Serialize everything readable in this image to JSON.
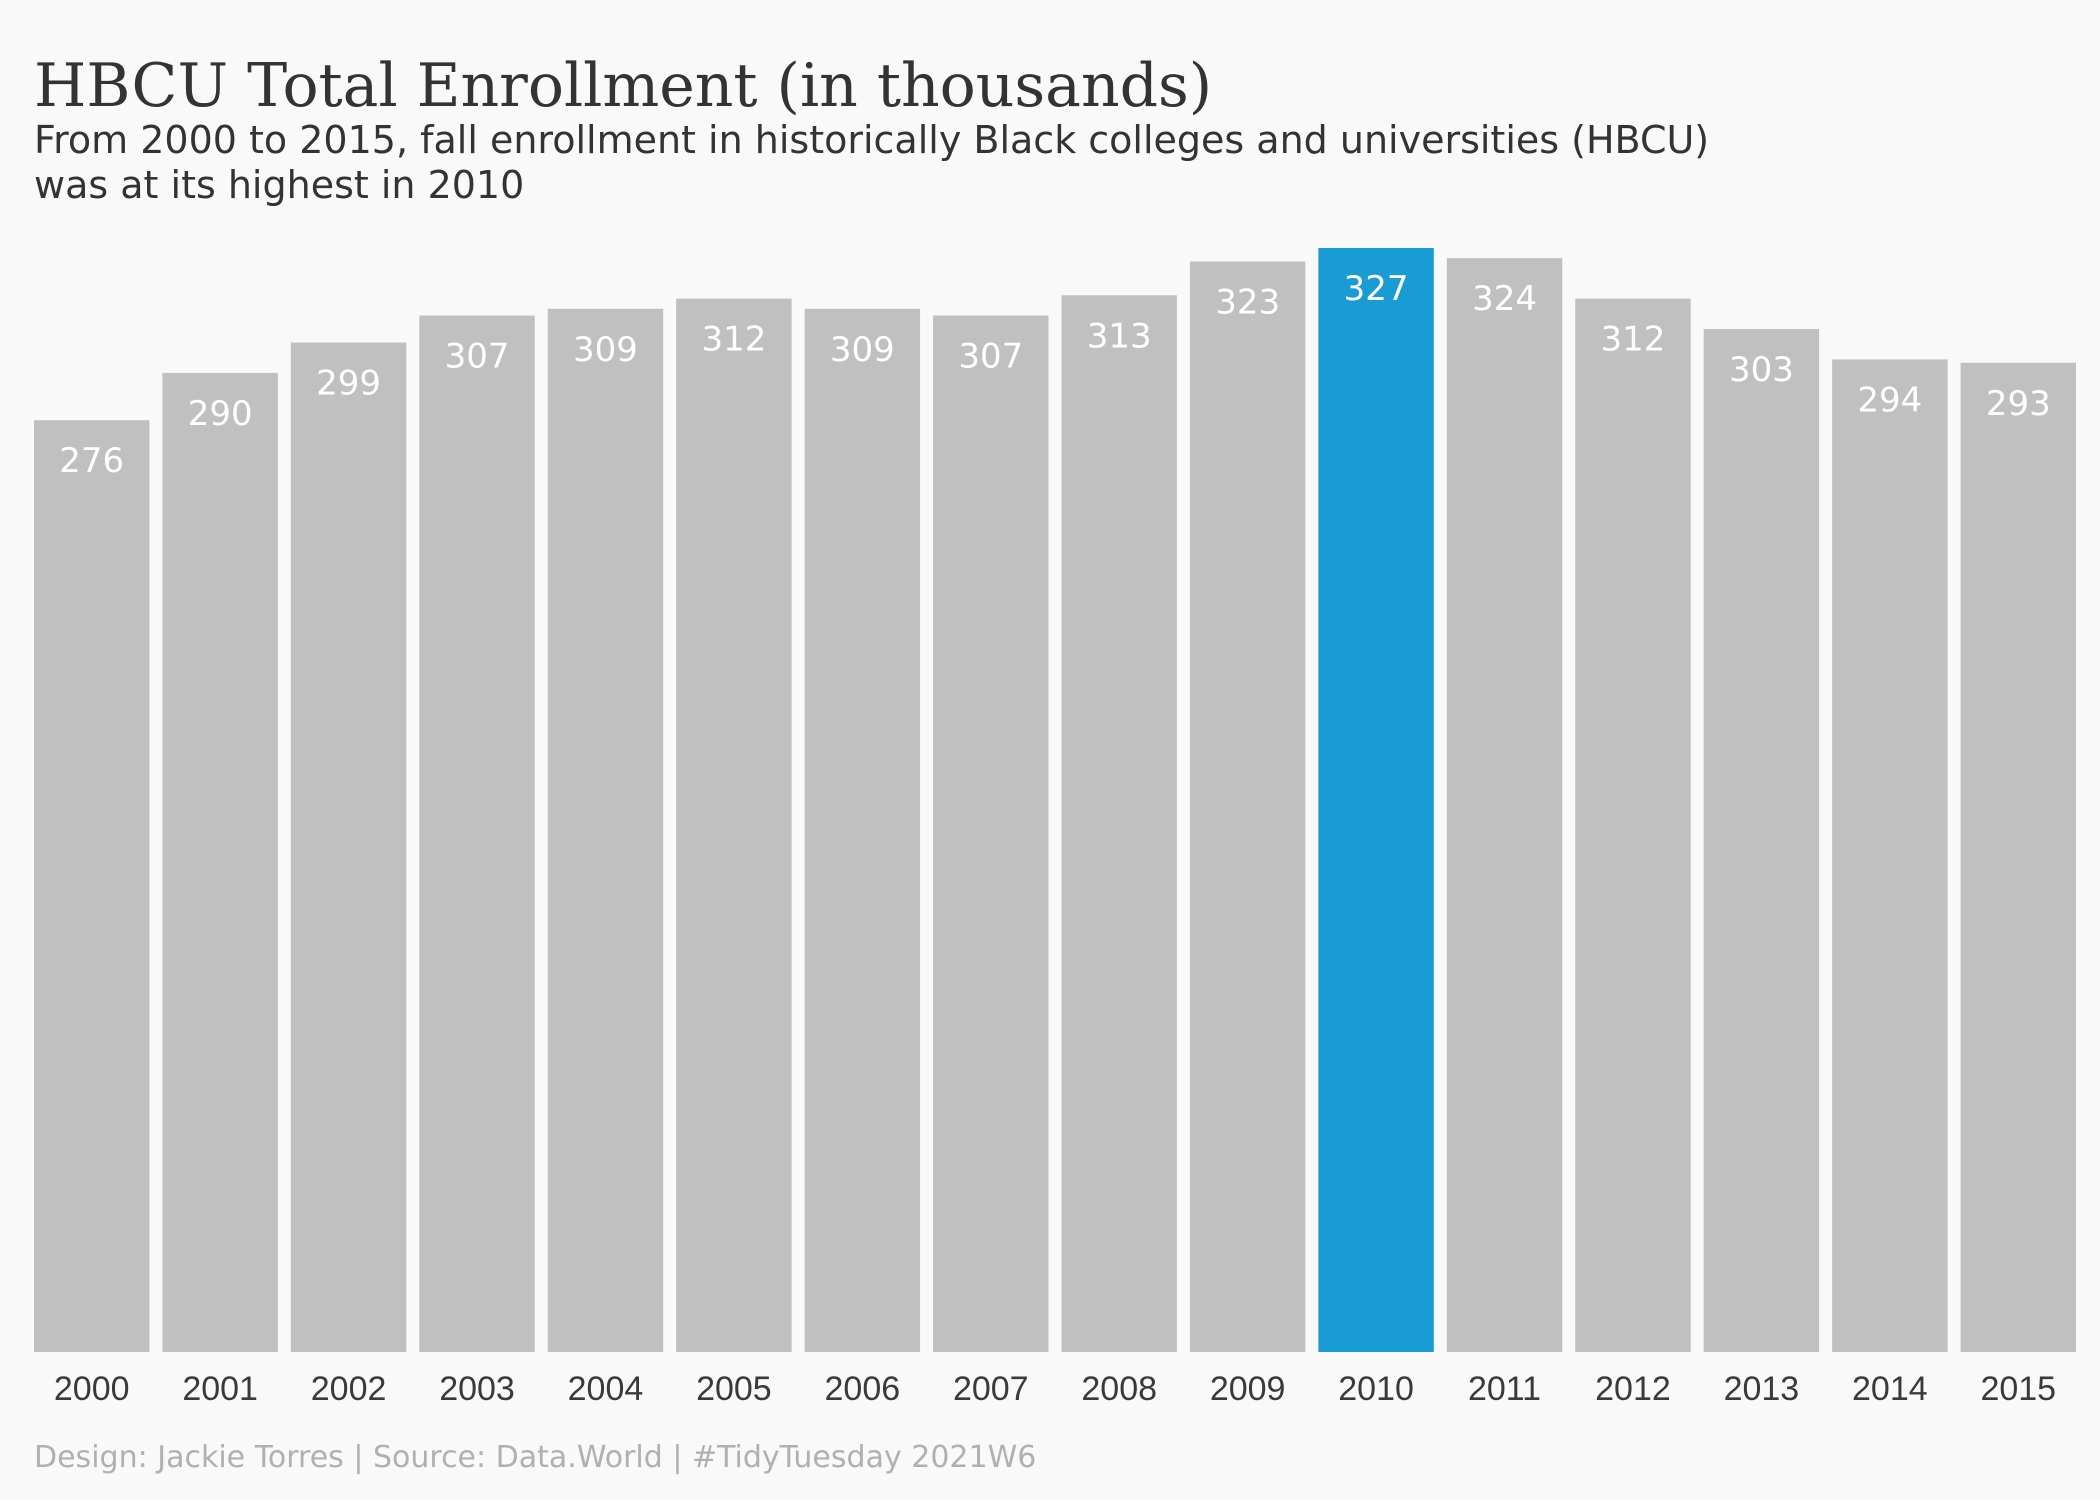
{
  "title": "HBCU Total Enrollment (in thousands)",
  "subtitle_line1": "From 2000 to 2015, fall enrollment in historically Black colleges and universities (HBCU)",
  "subtitle_line2": "was at its highest in 2010",
  "caption": "Design: Jackie Torres | Source: Data.World | #TidyTuesday 2021W6",
  "colors": {
    "bar": "#c0c0c0",
    "highlight": "#199bd4",
    "value_label": "#ffffff",
    "tick_label": "#3a3a3a",
    "background": "#f9f9f9"
  },
  "chart_data": {
    "type": "bar",
    "categories": [
      "2000",
      "2001",
      "2002",
      "2003",
      "2004",
      "2005",
      "2006",
      "2007",
      "2008",
      "2009",
      "2010",
      "2011",
      "2012",
      "2013",
      "2014",
      "2015"
    ],
    "values": [
      276,
      290,
      299,
      307,
      309,
      312,
      309,
      307,
      313,
      323,
      327,
      324,
      312,
      303,
      294,
      293
    ],
    "highlight_category": "2010",
    "xlabel": "",
    "ylabel": "",
    "ylim": [
      0,
      327
    ],
    "grid": false,
    "legend": "none"
  }
}
